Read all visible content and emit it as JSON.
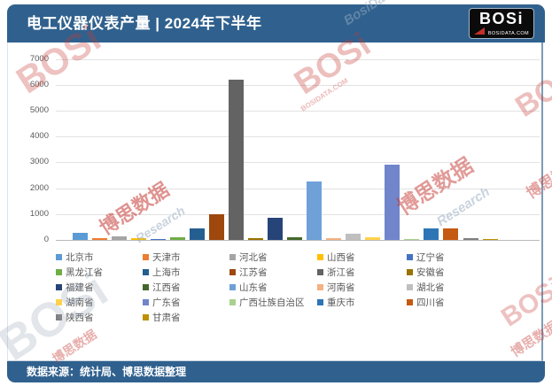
{
  "header": {
    "title": "电工仪器仪表产量 | 2024年下半年"
  },
  "logo": {
    "name": "BOSi",
    "domain": "BOSIDATA.COM"
  },
  "footer": {
    "source": "数据来源：统计局、博思数据整理"
  },
  "watermarks": {
    "logo": "BOSi",
    "cn": "博思数据",
    "research": "BosiData Research",
    "research_short": "Research",
    "domain": "BOSIDATA.COM"
  },
  "chart_data": {
    "type": "bar",
    "title": "电工仪器仪表产量 | 2024年下半年",
    "xlabel": "",
    "ylabel": "",
    "ylim": [
      0,
      7000
    ],
    "y_tick_step": 1000,
    "y_ticks": [
      0,
      1000,
      2000,
      3000,
      4000,
      5000,
      6000,
      7000
    ],
    "grid": true,
    "legend_position": "bottom",
    "series": [
      {
        "name": "北京市",
        "value": 280,
        "color": "#5B9BD5"
      },
      {
        "name": "天津市",
        "value": 55,
        "color": "#ED7D31"
      },
      {
        "name": "河北省",
        "value": 130,
        "color": "#A5A5A5"
      },
      {
        "name": "山西省",
        "value": 60,
        "color": "#FFC000"
      },
      {
        "name": "辽宁省",
        "value": 45,
        "color": "#4472C4"
      },
      {
        "name": "黑龙江省",
        "value": 95,
        "color": "#70AD47"
      },
      {
        "name": "上海市",
        "value": 440,
        "color": "#255E91"
      },
      {
        "name": "江苏省",
        "value": 1000,
        "color": "#9E480E"
      },
      {
        "name": "浙江省",
        "value": 6200,
        "color": "#636363"
      },
      {
        "name": "安徽省",
        "value": 85,
        "color": "#997300"
      },
      {
        "name": "福建省",
        "value": 850,
        "color": "#264478"
      },
      {
        "name": "江西省",
        "value": 90,
        "color": "#43682B"
      },
      {
        "name": "山东省",
        "value": 2250,
        "color": "#6FA0D8"
      },
      {
        "name": "河南省",
        "value": 60,
        "color": "#F4B183"
      },
      {
        "name": "湖北省",
        "value": 225,
        "color": "#BFBFBF"
      },
      {
        "name": "湖南省",
        "value": 115,
        "color": "#FFD24D"
      },
      {
        "name": "广东省",
        "value": 2900,
        "color": "#7185CB"
      },
      {
        "name": "广西壮族自治区",
        "value": 45,
        "color": "#A9D18E"
      },
      {
        "name": "重庆市",
        "value": 430,
        "color": "#2E75B6"
      },
      {
        "name": "四川省",
        "value": 450,
        "color": "#C55A11"
      },
      {
        "name": "陕西省",
        "value": 85,
        "color": "#7F7F7F"
      },
      {
        "name": "甘肃省",
        "value": 35,
        "color": "#BF9000"
      }
    ]
  }
}
